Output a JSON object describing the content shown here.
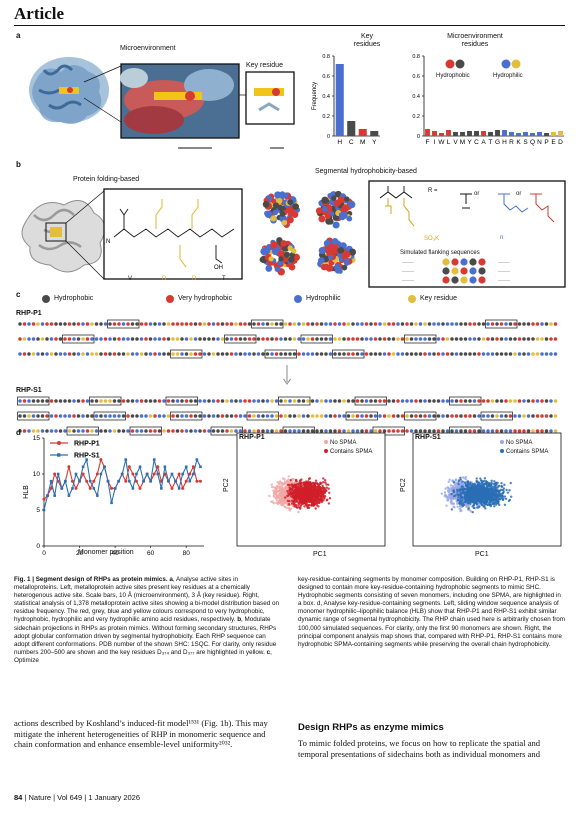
{
  "header": {
    "title": "Article"
  },
  "panel_a": {
    "label": "a",
    "microenvironment_label": "Microenvironment",
    "key_residue_label": "Key residue",
    "chart_key": {
      "title": "Key\nresidues",
      "ylabel": "Frequency",
      "yticks": [
        "0",
        "0.2",
        "0.4",
        "0.6",
        "0.8"
      ]
    },
    "chart_micro": {
      "title": "Microenvironment\nresidues",
      "legend_hydrophobic": "Hydrophobic",
      "legend_hydrophilic": "Hydrophilic",
      "yticks": [
        "0",
        "0.2",
        "0.4",
        "0.6",
        "0.8"
      ]
    }
  },
  "panel_b": {
    "label": "b",
    "left_title": "Protein folding-based",
    "right_title": "Segmental hydrophobicity-based",
    "seq_letters": [
      "V",
      "D",
      "D",
      "T"
    ],
    "r_label": "R =",
    "or_label": "or",
    "so3k_label": "SO₃K",
    "n_label": "n",
    "simulated_label": "Simulated flanking sequences"
  },
  "panel_c": {
    "label": "c",
    "legend": [
      {
        "label": "Hydrophobic",
        "color": "#4a4a4a"
      },
      {
        "label": "Very hydrophobic",
        "color": "#d63a32"
      },
      {
        "label": "Hydrophilic",
        "color": "#4a6fcf"
      },
      {
        "label": "Key residue",
        "color": "#e3bd3c"
      }
    ],
    "rhp_p1": "RHP-P1",
    "rhp_s1": "RHP-S1"
  },
  "panel_d": {
    "label": "d",
    "hlb_ylabel": "HLB",
    "hlb_xlabel": "Monomer position",
    "hlb_yticks": [
      "0",
      "5",
      "10",
      "15"
    ],
    "hlb_xticks": [
      "0",
      "20",
      "40",
      "60",
      "80"
    ],
    "pca1_title": "RHP-P1",
    "pca2_title": "RHP-S1",
    "pc1": "PC1",
    "pc2": "PC2",
    "no_spma": "No SPMA",
    "contains_spma": "Contains SPMA"
  },
  "chart_data": [
    {
      "type": "bar",
      "title": "Key residues",
      "ylabel": "Frequency",
      "categories": [
        "H",
        "C",
        "M",
        "Y"
      ],
      "values": [
        0.72,
        0.15,
        0.07,
        0.05
      ],
      "ylim": [
        0,
        0.8
      ],
      "colors": [
        "#4a6fcf",
        "#4a4a4a",
        "#d63a32",
        "#4a4a4a"
      ]
    },
    {
      "type": "bar",
      "title": "Microenvironment residues",
      "categories": [
        "F",
        "I",
        "W",
        "L",
        "V",
        "M",
        "Y",
        "C",
        "A",
        "T",
        "G",
        "H",
        "R",
        "K",
        "S",
        "Q",
        "N",
        "P",
        "E",
        "D"
      ],
      "values": [
        0.07,
        0.05,
        0.03,
        0.06,
        0.04,
        0.04,
        0.05,
        0.05,
        0.05,
        0.04,
        0.06,
        0.06,
        0.04,
        0.03,
        0.04,
        0.03,
        0.04,
        0.03,
        0.04,
        0.05
      ],
      "ylim": [
        0,
        0.8
      ]
    },
    {
      "type": "line",
      "title": "",
      "xlabel": "Monomer position",
      "ylabel": "HLB",
      "xlim": [
        0,
        90
      ],
      "ylim": [
        0,
        15
      ],
      "series": [
        {
          "name": "RHP-P1",
          "x": [
            0,
            2,
            4,
            6,
            8,
            10,
            12,
            14,
            16,
            18,
            20,
            22,
            24,
            26,
            28,
            30,
            32,
            34,
            36,
            38,
            40,
            42,
            44,
            46,
            48,
            50,
            52,
            54,
            56,
            58,
            60,
            62,
            64,
            66,
            68,
            70,
            72,
            74,
            76,
            78,
            80,
            82,
            84,
            86,
            88
          ],
          "values": [
            6.5,
            7,
            8,
            10,
            9,
            8,
            9,
            11,
            9,
            8,
            9,
            10,
            9,
            8,
            9,
            10,
            12,
            11,
            9,
            8,
            8,
            9,
            10,
            9,
            11,
            10,
            9,
            8,
            9,
            10,
            9,
            10,
            11,
            9,
            10,
            9,
            8,
            9,
            10,
            8,
            9,
            10,
            11,
            9,
            9
          ]
        },
        {
          "name": "RHP-S1",
          "x": [
            0,
            2,
            4,
            6,
            8,
            10,
            12,
            14,
            16,
            18,
            20,
            22,
            24,
            26,
            28,
            30,
            32,
            34,
            36,
            38,
            40,
            42,
            44,
            46,
            48,
            50,
            52,
            54,
            56,
            58,
            60,
            62,
            64,
            66,
            68,
            70,
            72,
            74,
            76,
            78,
            80,
            82,
            84,
            86,
            88
          ],
          "values": [
            5,
            7,
            9,
            7,
            10,
            8,
            9,
            7,
            8,
            10,
            9,
            11,
            12,
            9,
            8,
            7,
            10,
            11,
            9,
            6,
            8,
            9,
            10,
            12,
            9,
            8,
            10,
            11,
            9,
            10,
            9,
            12,
            10,
            8,
            11,
            9,
            10,
            9,
            8,
            10,
            11,
            9,
            10,
            12,
            11
          ]
        }
      ]
    },
    {
      "type": "scatter",
      "title": "RHP-P1",
      "xlabel": "PC1",
      "ylabel": "PC2",
      "series": [
        {
          "name": "No SPMA"
        },
        {
          "name": "Contains SPMA"
        }
      ]
    },
    {
      "type": "scatter",
      "title": "RHP-S1",
      "xlabel": "PC1",
      "ylabel": "PC2",
      "series": [
        {
          "name": "No SPMA"
        },
        {
          "name": "Contains SPMA"
        }
      ]
    }
  ],
  "caption": {
    "left": [
      {
        "b": "Fig. 1 | Segment design of RHPs as protein mimics.",
        "t": " "
      },
      {
        "b": "a",
        "t": ", Analyse active sites in metalloproteins. Left, metalloprotein active sites present key residues at a chemically heterogenous active site. Scale bars, 10 Å (microenvironment), 3 Å (key residue). Right, statistical analysis of 1,378 metalloprotein active sites showing a bi-model distribution based on residue frequency. The red, grey, blue and yellow colours correspond to very hydrophobic, hydrophobic, hydrophilic and very hydrophilic amino acid residues, respectively. "
      },
      {
        "b": "b",
        "t": ", Modulate sidechain projections in RHPs as protein mimics. Without forming secondary structures, RHPs adopt globular conformation driven by segmental hydrophobicity. Each RHP sequence can adopt different conformations. PDB number of the shown SHC: 1SQC. For clarity, only residue numbers 200–500 are shown and the key residues D₃₇₄ and D₃₇₇ are highlighted in yellow. "
      },
      {
        "b": "c",
        "t": ", Optimize"
      }
    ],
    "right_text": "key-residue-containing segments by monomer composition. Building on RHP-P1, RHP-S1 is designed to contain more key-residue-containing hydrophobic segments to mimic SHC. Hydrophobic segments consisting of seven monomers, including one SPMA, are highlighted in a box. d, Analyse key-residue-containing segments. Left, sliding window sequence analysis of monomer hydrophilic–lipophilic balance (HLB) show that RHP-P1 and RHP-S1 exhibit similar dynamic range of segmental hydrophobicity. The RHP chain used here is arbitrarily chosen from 100,000 simulated sequences. For clarity, only the first 90 monomers are shown. Right, the principal component analysis map shows that, compared with RHP-P1, RHP-S1 contains more hydrophobic SPMA-containing segments while preserving the overall chain hydrophobicity."
  },
  "body_left": "actions described by Koshland’s induced-fit model¹⁵³¹ (Fig. 1b). This may mitigate the inherent heterogeneities of RHP in monomeric sequence and chain conformation and enhance ensemble-level uniformity²⁰³².",
  "body_right_heading": "Design RHPs as enzyme mimics",
  "body_right": "To mimic folded proteins, we focus on how to replicate the spatial and temporal presentations of sidechains both as individual monomers and",
  "footer": {
    "page": "84",
    "sep1": "|",
    "journal": "Nature",
    "sep2": "|",
    "vol": "Vol 649",
    "sep3": "|",
    "date": "1 January 2026"
  }
}
